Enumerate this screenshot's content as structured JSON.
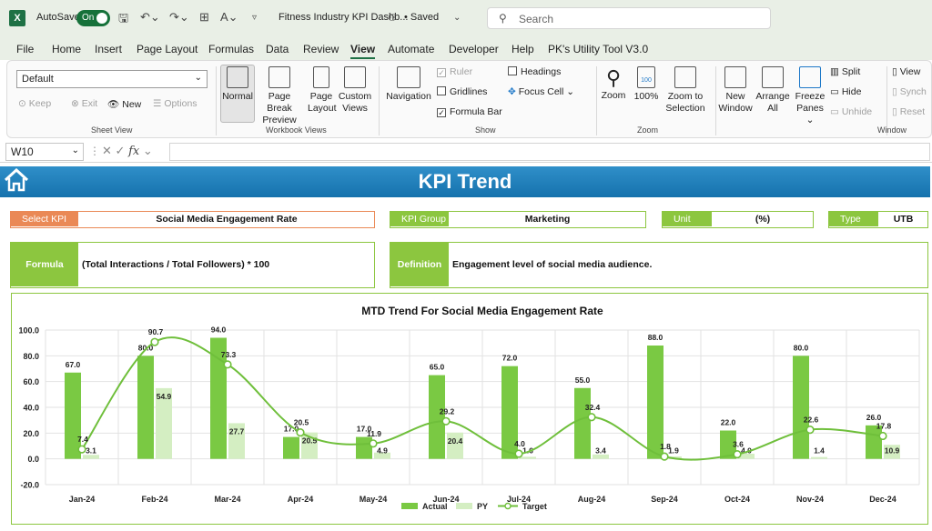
{
  "app": {
    "autosave_label": "AutoSave",
    "autosave_state": "On",
    "doc_title": "Fitness Industry KPI Dashb...",
    "saved_label": "• Saved",
    "search_placeholder": "Search",
    "accent_color": "#1e7145"
  },
  "menu": [
    "File",
    "Home",
    "Insert",
    "Page Layout",
    "Formulas",
    "Data",
    "Review",
    "View",
    "Automate",
    "Developer",
    "Help",
    "PK's Utility Tool V3.0"
  ],
  "ribbon": {
    "sheet_view": {
      "select_value": "Default",
      "keep": "Keep",
      "exit": "Exit",
      "new": "New",
      "options": "Options",
      "group": "Sheet View"
    },
    "workbook_views": {
      "normal": "Normal",
      "page_break_1": "Page Break",
      "page_break_2": "Preview",
      "page_layout_1": "Page",
      "page_layout_2": "Layout",
      "custom_1": "Custom",
      "custom_2": "Views",
      "group": "Workbook Views"
    },
    "show": {
      "navigation": "Navigation",
      "ruler": "Ruler",
      "gridlines": "Gridlines",
      "formula_bar": "Formula Bar",
      "headings": "Headings",
      "focus_cell": "Focus Cell",
      "group": "Show"
    },
    "zoom": {
      "zoom": "Zoom",
      "zoom100": "100%",
      "zoom_sel_1": "Zoom to",
      "zoom_sel_2": "Selection",
      "badge": "100",
      "group": "Zoom"
    },
    "window": {
      "new_1": "New",
      "new_2": "Window",
      "arrange_1": "Arrange",
      "arrange_2": "All",
      "freeze_1": "Freeze",
      "freeze_2": "Panes",
      "split": "Split",
      "hide": "Hide",
      "unhide": "Unhide",
      "view": "View",
      "synch": "Synch",
      "reset": "Reset",
      "group": "Window"
    }
  },
  "formula_bar": {
    "cell": "W10",
    "fx": "fx"
  },
  "dashboard": {
    "title": "KPI Trend",
    "select_kpi_label": "Select KPI",
    "select_kpi_value": "Social Media Engagement Rate",
    "kpi_group_label": "KPI Group",
    "kpi_group_value": "Marketing",
    "unit_label": "Unit",
    "unit_value": "(%)",
    "type_label": "Type",
    "type_value": "UTB",
    "formula_label": "Formula",
    "formula_value": "(Total Interactions / Total Followers) * 100",
    "definition_label": "Definition",
    "definition_value": "Engagement level of social media audience."
  },
  "chart_data": {
    "type": "bar",
    "title": "MTD Trend For Social Media Engagement Rate",
    "categories": [
      "Jan-24",
      "Feb-24",
      "Mar-24",
      "Apr-24",
      "May-24",
      "Jun-24",
      "Jul-24",
      "Aug-24",
      "Sep-24",
      "Oct-24",
      "Nov-24",
      "Dec-24"
    ],
    "series": [
      {
        "name": "Actual",
        "type": "bar",
        "color": "#7ac943",
        "values": [
          67.0,
          80.0,
          94.0,
          17.0,
          17.0,
          65.0,
          72.0,
          55.0,
          88.0,
          22.0,
          80.0,
          26.0
        ]
      },
      {
        "name": "PY",
        "type": "bar",
        "color": "#d4eec2",
        "values": [
          3.1,
          54.9,
          27.7,
          20.5,
          4.9,
          20.4,
          1.6,
          3.4,
          1.9,
          4.0,
          1.4,
          10.9
        ]
      },
      {
        "name": "Target",
        "type": "line",
        "color": "#6fbf3b",
        "values": [
          7.4,
          90.7,
          73.3,
          20.5,
          11.9,
          29.2,
          4.0,
          32.4,
          1.8,
          3.6,
          22.6,
          17.8
        ]
      }
    ],
    "ylim": [
      -20.0,
      100.0
    ],
    "yticks": [
      "100.0",
      "80.0",
      "60.0",
      "40.0",
      "20.0",
      "0.0",
      "-20.0"
    ],
    "grid": true,
    "legend": "bottom"
  }
}
